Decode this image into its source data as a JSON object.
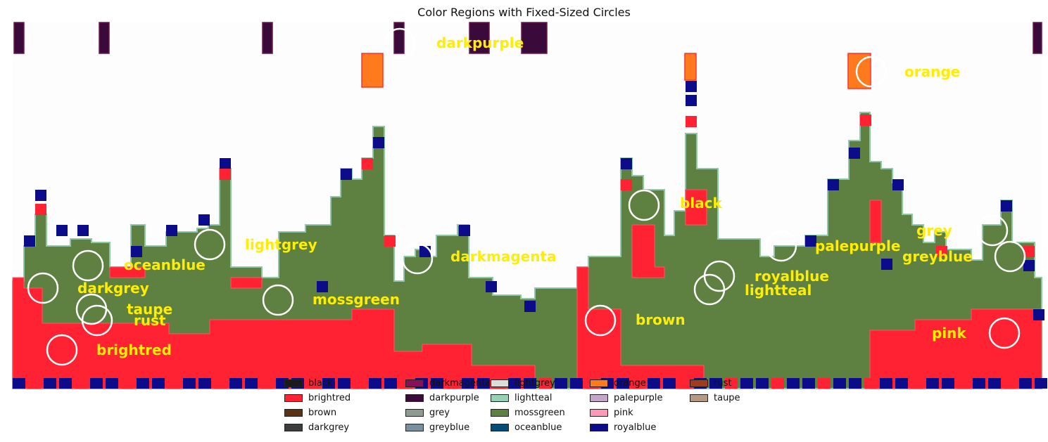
{
  "title": "Color Regions with Fixed-Sized Circles",
  "chart_data": {
    "type": "other",
    "title": "Color Regions with Fixed-Sized Circles",
    "xlabel": "",
    "ylabel": "",
    "grid": false,
    "legend_placement": "lower center",
    "region_labels": [
      {
        "name": "darkpurple"
      },
      {
        "name": "orange"
      },
      {
        "name": "black"
      },
      {
        "name": "lightgrey"
      },
      {
        "name": "grey"
      },
      {
        "name": "palepurple"
      },
      {
        "name": "darkmagenta"
      },
      {
        "name": "greyblue"
      },
      {
        "name": "oceanblue"
      },
      {
        "name": "royalblue"
      },
      {
        "name": "darkgrey"
      },
      {
        "name": "lightteal"
      },
      {
        "name": "mossgreen"
      },
      {
        "name": "taupe"
      },
      {
        "name": "rust"
      },
      {
        "name": "brown"
      },
      {
        "name": "pink"
      },
      {
        "name": "brightred"
      }
    ],
    "legend": [
      {
        "name": "black",
        "color": "#1a1a1a"
      },
      {
        "name": "brightred",
        "color": "#ff2233"
      },
      {
        "name": "brown",
        "color": "#5a3412"
      },
      {
        "name": "darkgrey",
        "color": "#3c3c3c"
      },
      {
        "name": "darkmagenta",
        "color": "#8a0f5a"
      },
      {
        "name": "darkpurple",
        "color": "#3a0a3a"
      },
      {
        "name": "grey",
        "color": "#8f9b92"
      },
      {
        "name": "greyblue",
        "color": "#7890a0"
      },
      {
        "name": "lightgrey",
        "color": "#dcdcd8"
      },
      {
        "name": "lightteal",
        "color": "#98d0b4"
      },
      {
        "name": "mossgreen",
        "color": "#5e8040"
      },
      {
        "name": "oceanblue",
        "color": "#064c78"
      },
      {
        "name": "orange",
        "color": "#ff7a1c"
      },
      {
        "name": "palepurple",
        "color": "#c4a6c8"
      },
      {
        "name": "pink",
        "color": "#ff98b8"
      },
      {
        "name": "royalblue",
        "color": "#0c0c8a"
      },
      {
        "name": "rust",
        "color": "#a23a1e"
      },
      {
        "name": "taupe",
        "color": "#b49a84"
      }
    ]
  },
  "colors": {
    "label_text": "#ffee00",
    "circle_stroke": "#ffffff",
    "background": "#fdfdfd"
  }
}
